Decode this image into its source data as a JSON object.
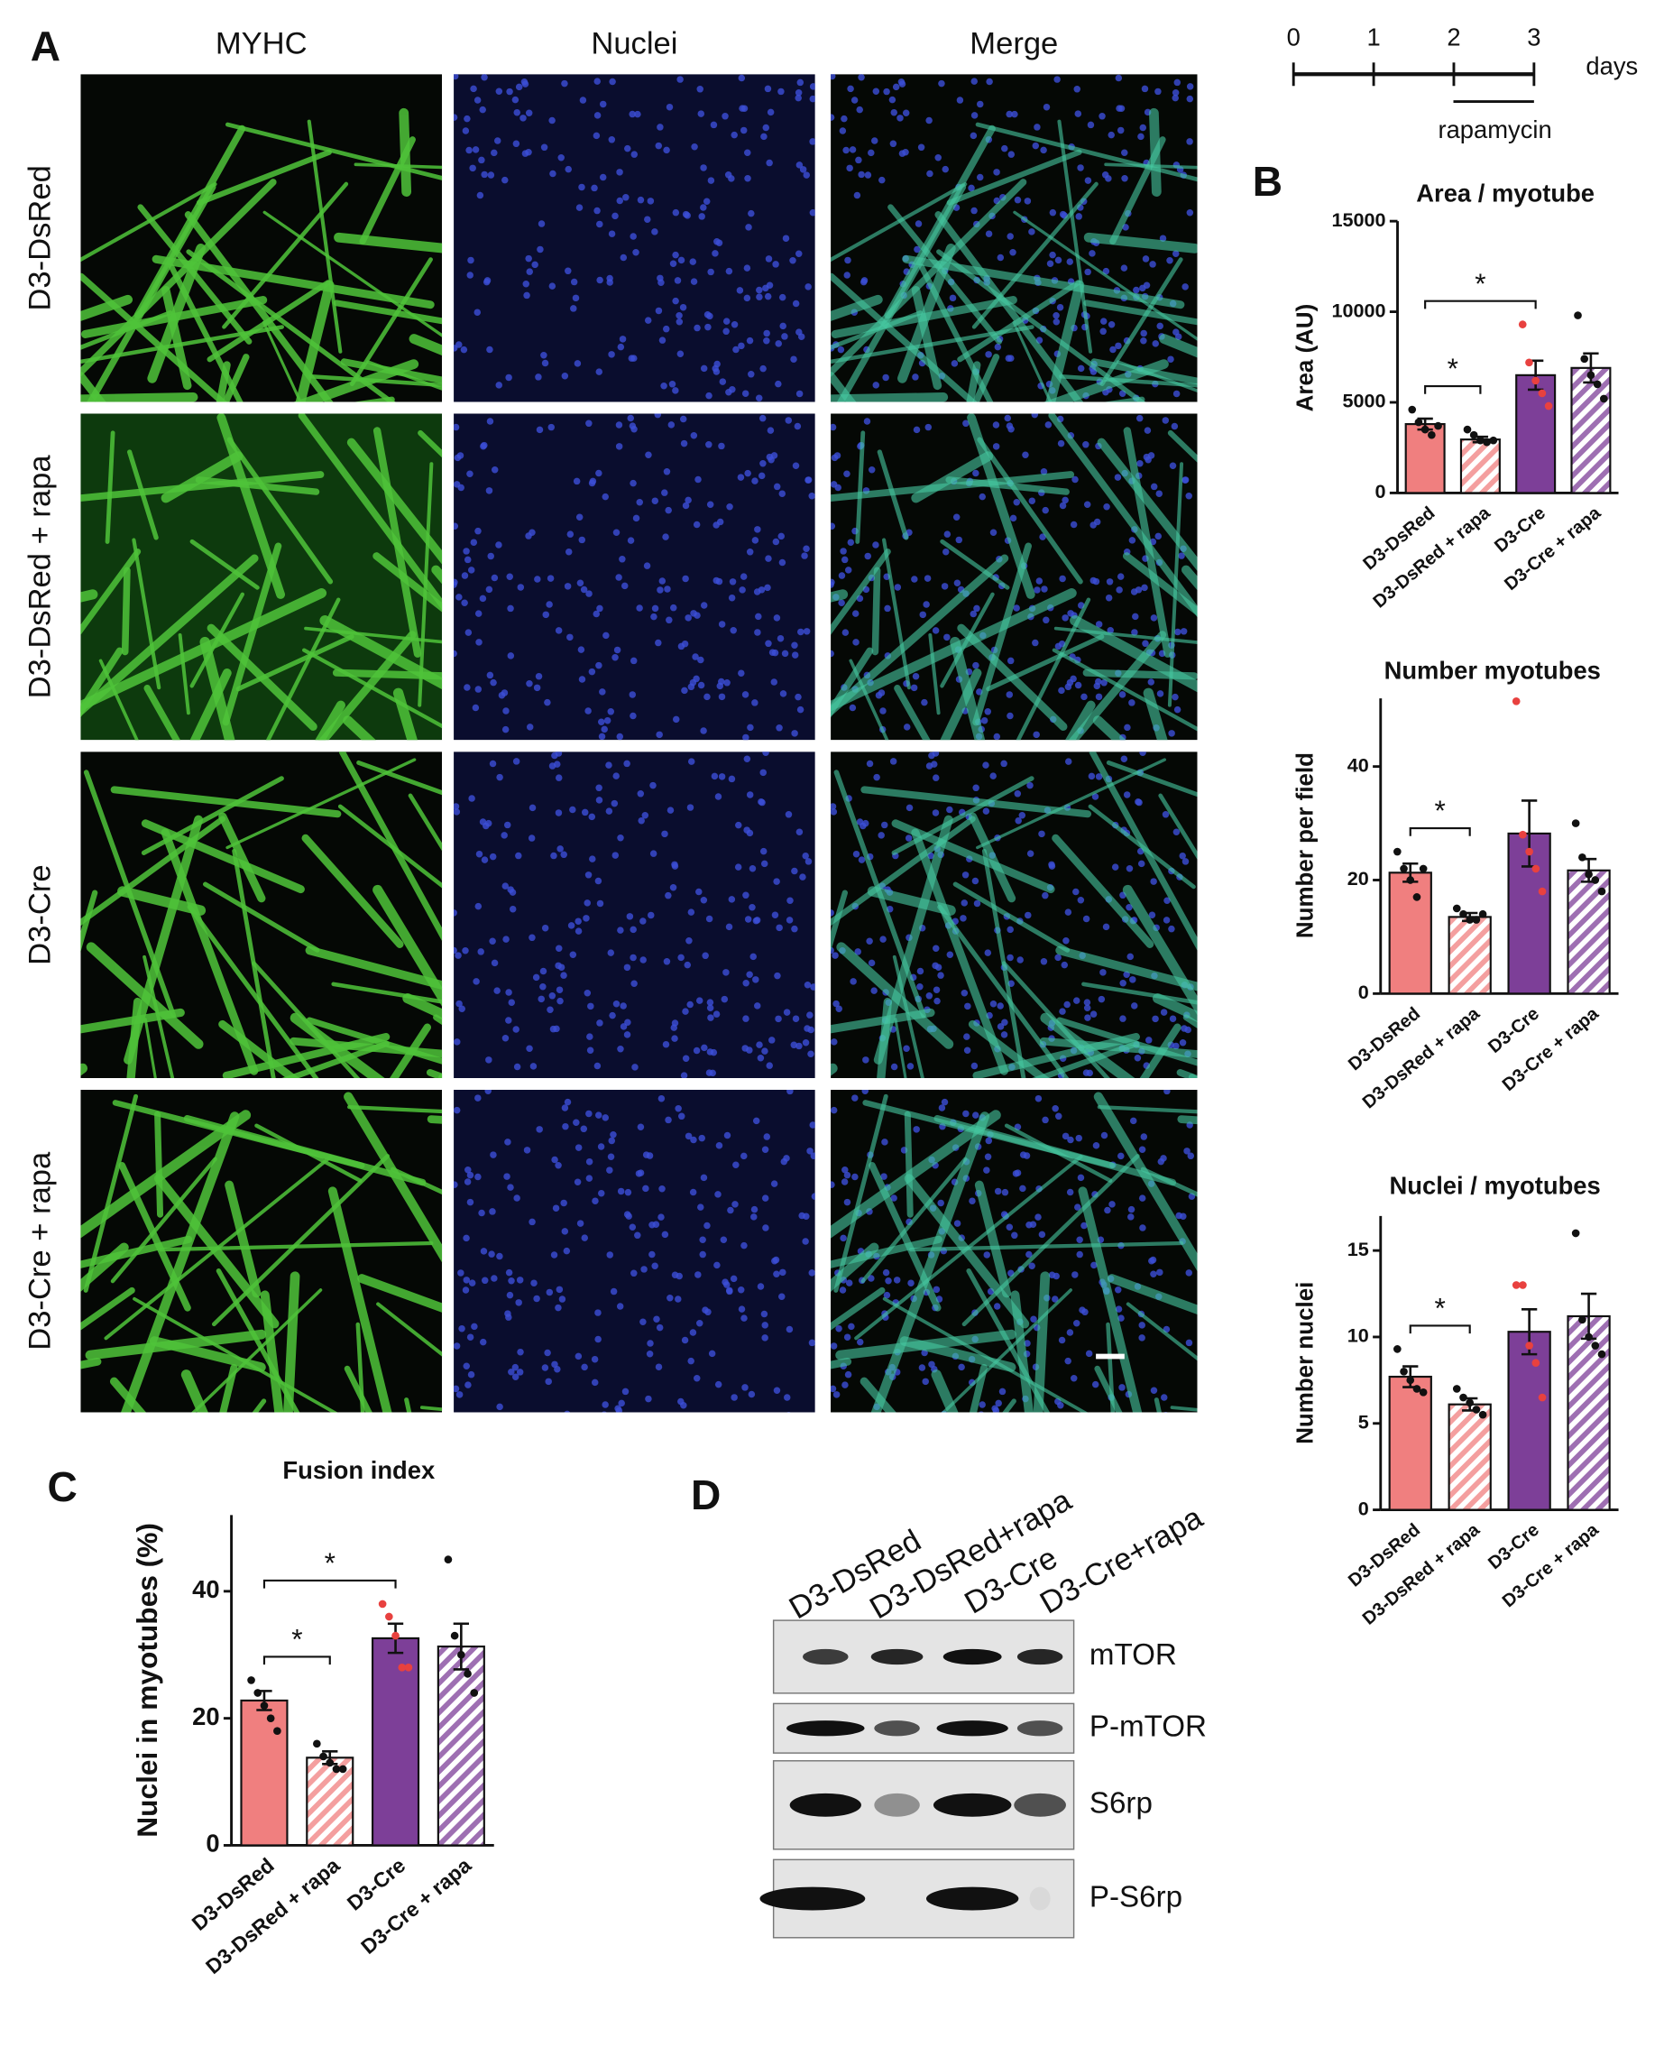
{
  "panel_labels": [
    "A",
    "B",
    "C",
    "D"
  ],
  "microscopy": {
    "columns": [
      "MYHC",
      "Nuclei",
      "Merge"
    ],
    "rows": [
      "D3-DsRed",
      "D3-DsRed + rapa",
      "D3-Cre",
      "D3-Cre + rapa"
    ]
  },
  "timeline": {
    "ticks": [
      0,
      1,
      2,
      3
    ],
    "unit": "days",
    "treatment": "rapamycin"
  },
  "western_blot": {
    "lanes": [
      "D3-DsRed",
      "D3-DsRed+rapa",
      "D3-Cre",
      "D3-Cre+rapa"
    ],
    "rows": [
      "mTOR",
      "P-mTOR",
      "S6rp",
      "P-S6rp"
    ]
  },
  "chart_data": [
    {
      "type": "bar",
      "title": "Area / myotube",
      "ylabel": "Area (AU)",
      "categories": [
        "D3-DsRed",
        "D3-DsRed + rapa",
        "D3-Cre",
        "D3-Cre + rapa"
      ],
      "values": [
        3800,
        2950,
        6500,
        6900
      ],
      "errors": [
        300,
        150,
        800,
        800
      ],
      "points": [
        [
          4600,
          3900,
          3500,
          3200,
          3700
        ],
        [
          3500,
          3200,
          2900,
          2800,
          2900
        ],
        [
          9300,
          7200,
          6200,
          5500,
          4800
        ],
        [
          9800,
          7400,
          6500,
          6000,
          5200
        ]
      ],
      "colors": [
        "#f07f7f",
        "#f07f7f",
        "#7d3f98",
        "#7d3f98"
      ],
      "hatched": [
        false,
        true,
        false,
        true
      ],
      "point_colors": [
        "#111111",
        "#111111",
        "#e8413f",
        "#111111"
      ],
      "ylim": [
        0,
        15000
      ],
      "yticks": [
        0,
        5000,
        10000,
        15000
      ],
      "brackets": [
        {
          "from": "D3-DsRed",
          "to": "D3-DsRed + rapa",
          "label": "*"
        },
        {
          "from": "D3-DsRed",
          "to": "D3-Cre",
          "label": "*"
        }
      ]
    },
    {
      "type": "bar",
      "title": "Number myotubes",
      "ylabel": "Number per field",
      "categories": [
        "D3-DsRed",
        "D3-DsRed + rapa",
        "D3-Cre",
        "D3-Cre + rapa"
      ],
      "values": [
        21.3,
        13.5,
        28.2,
        21.7
      ],
      "errors": [
        1.6,
        0.7,
        5.8,
        2.0
      ],
      "points": [
        [
          25,
          22,
          20,
          17,
          22
        ],
        [
          15,
          14,
          13,
          13,
          14
        ],
        [
          51.5,
          28,
          25,
          22,
          18
        ],
        [
          30,
          24,
          21,
          20,
          18
        ]
      ],
      "colors": [
        "#f07f7f",
        "#f07f7f",
        "#7d3f98",
        "#7d3f98"
      ],
      "hatched": [
        false,
        true,
        false,
        true
      ],
      "point_colors": [
        "#111111",
        "#111111",
        "#e8413f",
        "#111111"
      ],
      "ylim": [
        0,
        52
      ],
      "yticks": [
        0,
        20,
        40
      ],
      "brackets": [
        {
          "from": "D3-DsRed",
          "to": "D3-DsRed + rapa",
          "label": "*"
        }
      ]
    },
    {
      "type": "bar",
      "title": "Nuclei / myotubes",
      "ylabel": "Number nuclei",
      "categories": [
        "D3-DsRed",
        "D3-DsRed + rapa",
        "D3-Cre",
        "D3-Cre + rapa"
      ],
      "values": [
        7.7,
        6.1,
        10.3,
        11.2
      ],
      "errors": [
        0.6,
        0.35,
        1.3,
        1.3
      ],
      "points": [
        [
          9.3,
          8,
          7.5,
          7,
          6.8
        ],
        [
          7,
          6.5,
          6.2,
          5.8,
          5.5
        ],
        [
          13,
          13,
          9.5,
          8.5,
          6.5
        ],
        [
          16,
          11,
          10,
          9.5,
          9
        ]
      ],
      "colors": [
        "#f07f7f",
        "#f07f7f",
        "#7d3f98",
        "#7d3f98"
      ],
      "hatched": [
        false,
        true,
        false,
        true
      ],
      "point_colors": [
        "#111111",
        "#111111",
        "#e8413f",
        "#111111"
      ],
      "ylim": [
        0,
        17
      ],
      "yticks": [
        0,
        5,
        10,
        15
      ],
      "brackets": [
        {
          "from": "D3-DsRed",
          "to": "D3-DsRed + rapa",
          "label": "*"
        }
      ]
    },
    {
      "type": "bar",
      "title": "Fusion index",
      "ylabel": "Nuclei in myotubes (%)",
      "categories": [
        "D3-DsRed",
        "D3-DsRed + rapa",
        "D3-Cre",
        "D3-Cre + rapa"
      ],
      "values": [
        22.8,
        13.8,
        32.6,
        31.3
      ],
      "errors": [
        1.5,
        1.0,
        2.3,
        3.6
      ],
      "points": [
        [
          26,
          24,
          22,
          20,
          18
        ],
        [
          16,
          14,
          13,
          12,
          12
        ],
        [
          38,
          36,
          33,
          28,
          28
        ],
        [
          45,
          33,
          30,
          27,
          24
        ]
      ],
      "colors": [
        "#f07f7f",
        "#f07f7f",
        "#7d3f98",
        "#7d3f98"
      ],
      "hatched": [
        false,
        true,
        false,
        true
      ],
      "point_colors": [
        "#111111",
        "#111111",
        "#e8413f",
        "#111111"
      ],
      "ylim": [
        0,
        52
      ],
      "yticks": [
        0,
        20,
        40
      ],
      "brackets": [
        {
          "from": "D3-DsRed",
          "to": "D3-DsRed + rapa",
          "label": "*"
        },
        {
          "from": "D3-DsRed",
          "to": "D3-Cre",
          "label": "*"
        }
      ]
    }
  ]
}
